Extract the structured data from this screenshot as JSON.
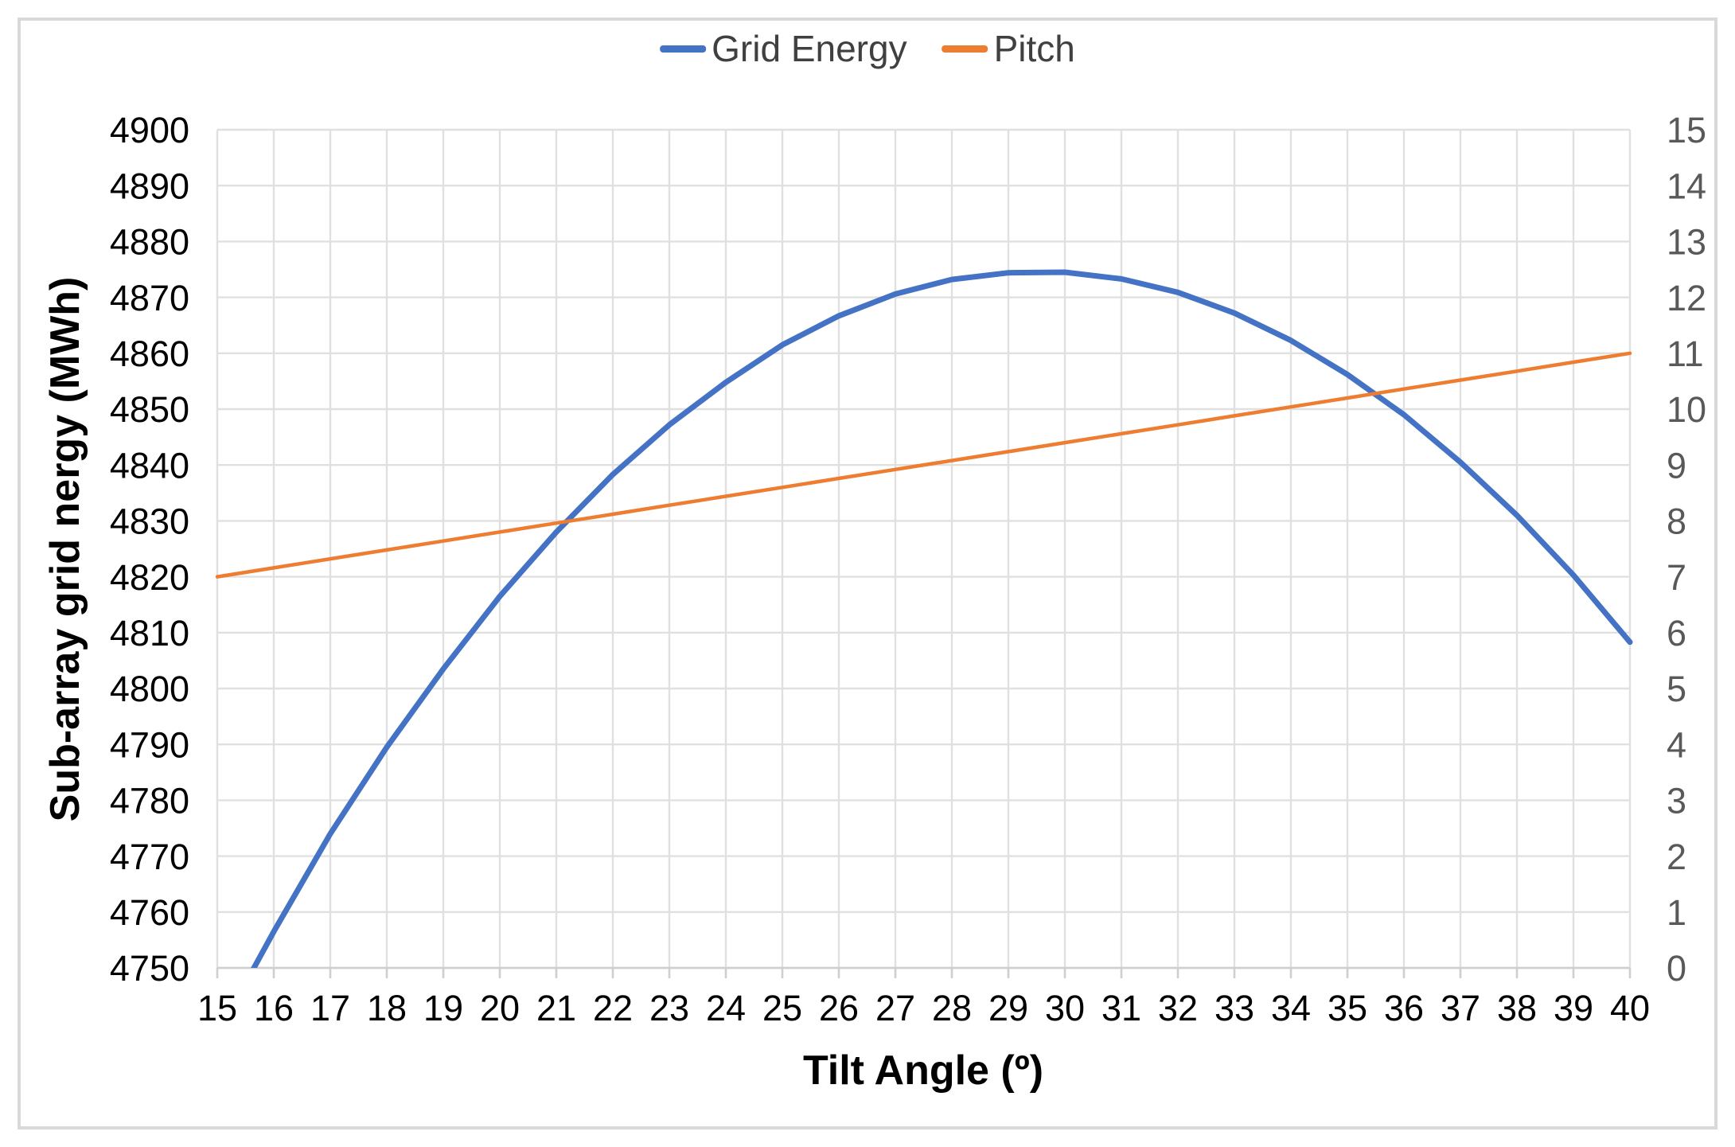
{
  "figure": {
    "background": "#ffffff",
    "border_color": "#d9d9d9",
    "gridline_color": "#e0e0e0",
    "axis_line_color": "#cfcfcf"
  },
  "legend": {
    "position": "top-center",
    "items": [
      {
        "label": "Grid Energy",
        "color": "#4472c4"
      },
      {
        "label": "Pitch",
        "color": "#ed7d31"
      }
    ]
  },
  "chart_data": {
    "type": "line",
    "title": "",
    "xlabel": "Tilt Angle (º)",
    "ylabel_left": "Sub-array grid nergy (MWh)",
    "ylabel_right": "",
    "grid": true,
    "legend_position": "top",
    "x": [
      15,
      16,
      17,
      18,
      19,
      20,
      21,
      22,
      23,
      24,
      25,
      26,
      27,
      28,
      29,
      30,
      31,
      32,
      33,
      34,
      35,
      36,
      37,
      38,
      39,
      40
    ],
    "left_axis": {
      "min": 4750,
      "max": 4900,
      "step": 10,
      "tick_labels": [
        "4750",
        "4760",
        "4770",
        "4780",
        "4790",
        "4800",
        "4810",
        "4820",
        "4830",
        "4840",
        "4850",
        "4860",
        "4870",
        "4880",
        "4890",
        "4900"
      ]
    },
    "right_axis": {
      "min": 0,
      "max": 15,
      "step": 1,
      "tick_labels": [
        "0",
        "1",
        "2",
        "3",
        "4",
        "5",
        "6",
        "7",
        "8",
        "9",
        "10",
        "11",
        "12",
        "13",
        "14",
        "15"
      ]
    },
    "series": [
      {
        "name": "Grid Energy",
        "axis": "left",
        "color": "#4472c4",
        "stroke_width": 7,
        "values": [
          4738.0,
          4756.5,
          4774.0,
          4789.5,
          4803.5,
          4816.5,
          4828.0,
          4838.3,
          4847.2,
          4854.8,
          4861.5,
          4866.7,
          4870.6,
          4873.2,
          4874.4,
          4874.5,
          4873.3,
          4870.9,
          4867.2,
          4862.3,
          4856.2,
          4849.0,
          4840.5,
          4831.0,
          4820.3,
          4808.3
        ]
      },
      {
        "name": "Pitch",
        "axis": "right",
        "color": "#ed7d31",
        "stroke_width": 4.5,
        "values": [
          7.0,
          7.16,
          7.32,
          7.48,
          7.64,
          7.8,
          7.96,
          8.12,
          8.28,
          8.44,
          8.6,
          8.76,
          8.92,
          9.08,
          9.24,
          9.4,
          9.56,
          9.72,
          9.88,
          10.04,
          10.2,
          10.36,
          10.52,
          10.68,
          10.84,
          11.0
        ]
      }
    ]
  }
}
